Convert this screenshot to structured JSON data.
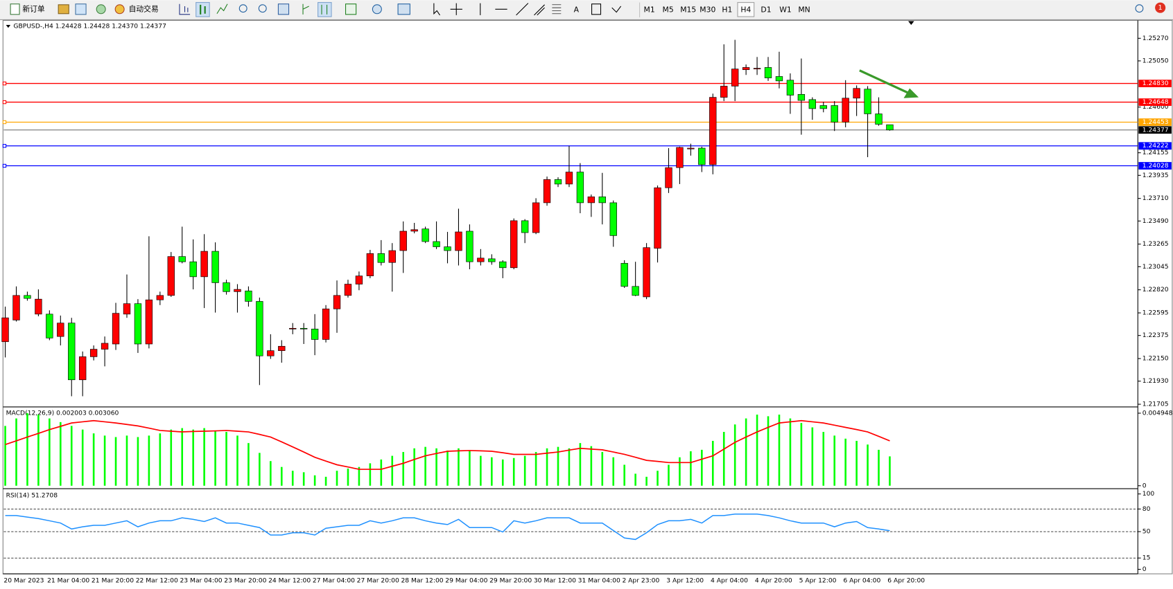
{
  "toolbar": {
    "new_order": "新订单",
    "auto_trading": "自动交易",
    "timeframes": [
      "M1",
      "M5",
      "M15",
      "M30",
      "H1",
      "H4",
      "D1",
      "W1",
      "MN"
    ],
    "text_tool": "A",
    "badge": "1"
  },
  "chart_data": [
    {
      "type": "candlestick",
      "title": "GBPUSD-,H4 1.24428 1.24428 1.24370 1.24377",
      "categories": [
        "20 Mar 2023",
        null,
        null,
        null,
        "21 Mar 04:00",
        null,
        null,
        null,
        "21 Mar 20:00",
        null,
        null,
        null,
        "22 Mar 12:00",
        null,
        null,
        null,
        "23 Mar 04:00",
        null,
        null,
        null,
        "23 Mar 20:00",
        null,
        null,
        null,
        "24 Mar 12:00",
        null,
        null,
        null,
        "27 Mar 04:00",
        null,
        null,
        null,
        "27 Mar 20:00",
        null,
        null,
        null,
        "28 Mar 12:00",
        null,
        null,
        null,
        "29 Mar 04:00",
        null,
        null,
        null,
        "29 Mar 20:00",
        null,
        null,
        null,
        "30 Mar 12:00",
        null,
        null,
        null,
        "31 Mar 04:00",
        null,
        null,
        null,
        "2 Apr 23:00",
        null,
        null,
        null,
        "3 Apr 12:00",
        null,
        null,
        null,
        "4 Apr 04:00",
        null,
        null,
        null,
        "4 Apr 20:00",
        null,
        null,
        null,
        "5 Apr 12:00",
        null,
        null,
        null,
        "6 Apr 04:00",
        null,
        null,
        null,
        "6 Apr 20:00"
      ],
      "open": [
        1.22314,
        1.22525,
        1.22765,
        1.22583,
        1.22583,
        1.22365,
        1.22496,
        1.21943,
        1.22168,
        1.22241,
        1.22292,
        1.22583,
        1.22685,
        1.22292,
        1.22722,
        1.22765,
        1.23144,
        1.23093,
        1.22947,
        1.23195,
        1.22889,
        1.22802,
        1.22809,
        1.22707,
        1.22176,
        1.22227,
        1.22438,
        1.22445,
        1.22438,
        1.22336,
        1.22634,
        1.22765,
        1.22875,
        1.22955,
        1.23173,
        1.23086,
        1.23202,
        1.23391,
        1.23413,
        1.2329,
        1.23239,
        1.23202,
        1.23391,
        1.23093,
        1.23122,
        1.23093,
        1.23035,
        1.23493,
        1.23377,
        1.23668,
        1.23894,
        1.2385,
        1.23967,
        1.23668,
        1.23726,
        1.23668,
        1.23078,
        1.22853,
        1.22751,
        1.23224,
        1.23814,
        1.2401,
        1.24192,
        1.242,
        1.24039,
        1.24695,
        1.24804,
        1.24964,
        1.24971,
        1.24986,
        1.24898,
        1.24862,
        1.24724,
        1.24673,
        1.24615,
        1.24615,
        1.24454,
        1.24687,
        1.24775,
        1.24534,
        1.24428
      ],
      "high": [
        1.22656,
        1.22853,
        1.22802,
        1.22824,
        1.2262,
        1.22569,
        1.22547,
        1.22219,
        1.22278,
        1.22365,
        1.22693,
        1.22969,
        1.22729,
        1.23341,
        1.22802,
        1.23188,
        1.23435,
        1.23311,
        1.23362,
        1.23282,
        1.22918,
        1.22875,
        1.22853,
        1.22744,
        1.22387,
        1.22329,
        1.22496,
        1.22496,
        1.22583,
        1.22671,
        1.22911,
        1.22918,
        1.22998,
        1.23209,
        1.23304,
        1.23275,
        1.23486,
        1.23472,
        1.23435,
        1.23486,
        1.23384,
        1.2361,
        1.23457,
        1.23217,
        1.23166,
        1.23108,
        1.23515,
        1.23508,
        1.23712,
        1.23923,
        1.23916,
        1.24221,
        1.24054,
        1.23748,
        1.23959,
        1.2369,
        1.23108,
        1.23093,
        1.23275,
        1.23836,
        1.242,
        1.24214,
        1.24243,
        1.24214,
        1.24731,
        1.25211,
        1.25255,
        1.25015,
        1.25088,
        1.25088,
        1.25139,
        1.24928,
        1.25073,
        1.24695,
        1.24651,
        1.24658,
        1.24862,
        1.24811,
        1.24804,
        1.24695,
        1.24428
      ],
      "low": [
        1.22161,
        1.22511,
        1.22714,
        1.22562,
        1.22329,
        1.22278,
        1.21783,
        1.21783,
        1.22132,
        1.22074,
        1.22234,
        1.22547,
        1.22205,
        1.22249,
        1.22671,
        1.22751,
        1.23078,
        1.22824,
        1.22642,
        1.22598,
        1.22773,
        1.22598,
        1.22656,
        1.21892,
        1.22147,
        1.2211,
        1.22387,
        1.22292,
        1.22183,
        1.22307,
        1.22401,
        1.22744,
        1.22816,
        1.22933,
        1.23057,
        1.22802,
        1.22984,
        1.2337,
        1.23275,
        1.23217,
        1.23078,
        1.23057,
        1.2302,
        1.23057,
        1.23064,
        1.22933,
        1.2302,
        1.23275,
        1.23362,
        1.23639,
        1.23821,
        1.23821,
        1.23566,
        1.2353,
        1.23457,
        1.23239,
        1.22838,
        1.22758,
        1.22729,
        1.23086,
        1.23763,
        1.2385,
        1.24127,
        1.23967,
        1.23945,
        1.24658,
        1.24658,
        1.24913,
        1.24913,
        1.24855,
        1.24782,
        1.24534,
        1.24331,
        1.24476,
        1.24549,
        1.24367,
        1.24403,
        1.24513,
        1.24112,
        1.24418,
        1.2437
      ],
      "close": [
        1.22547,
        1.22765,
        1.22736,
        1.22729,
        1.2235,
        1.22496,
        1.21943,
        1.22168,
        1.22241,
        1.22299,
        1.22591,
        1.22685,
        1.22292,
        1.22722,
        1.22765,
        1.23144,
        1.23093,
        1.22947,
        1.23195,
        1.22889,
        1.22802,
        1.22824,
        1.22707,
        1.22176,
        1.22227,
        1.2227,
        1.22445,
        1.22438,
        1.22336,
        1.22634,
        1.22765,
        1.22875,
        1.22955,
        1.23173,
        1.23086,
        1.23202,
        1.23391,
        1.23406,
        1.2329,
        1.23239,
        1.23202,
        1.23384,
        1.23093,
        1.23129,
        1.23093,
        1.23035,
        1.23493,
        1.23377,
        1.23668,
        1.23894,
        1.2385,
        1.23967,
        1.23668,
        1.23726,
        1.23668,
        1.23348,
        1.22853,
        1.22765,
        1.23231,
        1.23814,
        1.2401,
        1.24207,
        1.242,
        1.24039,
        1.24695,
        1.24804,
        1.24971,
        1.24986,
        1.24978,
        1.24884,
        1.24855,
        1.24716,
        1.24665,
        1.24585,
        1.24585,
        1.24454,
        1.24687,
        1.24782,
        1.24534,
        1.24432,
        1.24377
      ],
      "up_color": "#ff0000",
      "down_color": "#00ff00",
      "ylim": [
        1.2169,
        1.25437
      ],
      "yticks": [
        {
          "value": 1.2527,
          "label": "1.25270"
        },
        {
          "value": 1.2505,
          "label": "1.25050"
        },
        {
          "value": 1.246,
          "label": "1.24600"
        },
        1.24155,
        1.23935,
        {
          "value": 1.2371,
          "label": "1.23710"
        },
        {
          "value": 1.2349,
          "label": "1.23490"
        },
        1.23265,
        1.23045,
        {
          "value": 1.2282,
          "label": "1.22820"
        },
        1.22595,
        1.22375,
        {
          "value": 1.2215,
          "label": "1.22150"
        },
        {
          "value": 1.2193,
          "label": "1.21930"
        },
        1.21705
      ],
      "levels": [
        {
          "value": 1.2483,
          "label": "1.24830",
          "color": "#ff0000"
        },
        {
          "value": 1.24648,
          "label": "1.24648",
          "color": "#ff0000"
        },
        {
          "value": 1.24453,
          "label": "1.24453",
          "color": "#ffa500"
        },
        {
          "value": 1.24377,
          "label": "1.24377",
          "color": "#000000"
        },
        {
          "value": 1.24222,
          "label": "1.24222",
          "color": "#0000ff"
        },
        {
          "value": 1.24028,
          "label": "1.24028",
          "color": "#0000ff"
        }
      ]
    },
    {
      "type": "macd",
      "title": "MACD(12,26,9) 0.002003 0.003060",
      "series": [
        {
          "values": [
            0.00408,
            0.00459,
            0.00495,
            0.00485,
            0.00459,
            0.00434,
            0.00408,
            0.00383,
            0.00357,
            0.00342,
            0.00332,
            0.00342,
            0.00332,
            0.00342,
            0.00357,
            0.00383,
            0.00393,
            0.00383,
            0.00393,
            0.00377,
            0.00367,
            0.00342,
            0.00291,
            0.00224,
            0.00168,
            0.00128,
            0.00102,
            0.00092,
            0.00071,
            0.00061,
            0.00102,
            0.00117,
            0.00128,
            0.00153,
            0.00179,
            0.00204,
            0.0023,
            0.00255,
            0.00265,
            0.00255,
            0.0024,
            0.00255,
            0.0024,
            0.00204,
            0.00194,
            0.00179,
            0.00189,
            0.00204,
            0.0023,
            0.00255,
            0.00265,
            0.00255,
            0.00291,
            0.0027,
            0.0023,
            0.00194,
            0.00143,
            0.00082,
            0.00061,
            0.00102,
            0.00143,
            0.00194,
            0.00235,
            0.00245,
            0.00306,
            0.00367,
            0.00418,
            0.00459,
            0.00485,
            0.00474,
            0.00485,
            0.00459,
            0.00428,
            0.00398,
            0.00367,
            0.00342,
            0.00321,
            0.00306,
            0.00281,
            0.00245,
            0.002003
          ],
          "color": "#00ff00"
        },
        {
          "values": [
            0.00281,
            0.00306,
            0.00332,
            0.00357,
            0.00383,
            0.00405,
            0.00428,
            0.00436,
            0.00444,
            0.00436,
            0.00428,
            0.00418,
            0.00408,
            0.00393,
            0.00377,
            0.00372,
            0.00367,
            0.0037,
            0.00372,
            0.00374,
            0.00377,
            0.00372,
            0.00367,
            0.0035,
            0.00332,
            0.00299,
            0.00265,
            0.0023,
            0.00194,
            0.00168,
            0.00143,
            0.00128,
            0.00112,
            0.00112,
            0.00112,
            0.00133,
            0.00153,
            0.00179,
            0.00204,
            0.0022,
            0.00235,
            0.00238,
            0.0024,
            0.00238,
            0.00235,
            0.00225,
            0.00214,
            0.00214,
            0.00214,
            0.00222,
            0.0023,
            0.00243,
            0.00255,
            0.0025,
            0.00245,
            0.0023,
            0.00214,
            0.00194,
            0.00173,
            0.00166,
            0.00158,
            0.00158,
            0.00158,
            0.00181,
            0.00204,
            0.0025,
            0.00296,
            0.00332,
            0.00367,
            0.00398,
            0.00428,
            0.00436,
            0.00444,
            0.00436,
            0.00428,
            0.00413,
            0.00398,
            0.00383,
            0.00367,
            0.00337,
            0.00306
          ],
          "color": "#ff0000"
        }
      ],
      "ylim": [
        -0.0001,
        0.0053
      ],
      "yticks": [
        0,
        0.004948
      ]
    },
    {
      "type": "rsi",
      "title": "RSI(14) 51.2708",
      "values": [
        71.3,
        71.3,
        69.3,
        67.3,
        64.4,
        61.4,
        53.5,
        56.4,
        58.4,
        58.4,
        61.4,
        64.4,
        56.4,
        61.4,
        64.4,
        64.4,
        68.3,
        66.3,
        63.4,
        68.3,
        61.4,
        61.4,
        58.4,
        55.4,
        45.5,
        45.5,
        48.5,
        48.5,
        45.5,
        54.5,
        56.4,
        58.4,
        58.4,
        64.4,
        61.4,
        64.4,
        68.3,
        68.3,
        64.4,
        61.4,
        59.4,
        66.3,
        55.4,
        55.4,
        55.4,
        49.5,
        64.4,
        61.4,
        64.4,
        68.3,
        68.3,
        68.3,
        61.4,
        61.4,
        61.4,
        51.5,
        41.6,
        39.6,
        48.5,
        59.4,
        64.4,
        64.4,
        66.3,
        61.4,
        71.3,
        71.3,
        73.3,
        73.3,
        73.3,
        71.3,
        68.3,
        64.4,
        61.4,
        61.4,
        61.4,
        56.4,
        61.4,
        63.4,
        55.4,
        53.5,
        51.2708
      ],
      "color": "#1e90ff",
      "ylim": [
        -5,
        105
      ],
      "yticks": [
        0,
        15,
        50,
        80,
        100
      ],
      "levels": [
        15,
        50,
        80
      ]
    }
  ]
}
